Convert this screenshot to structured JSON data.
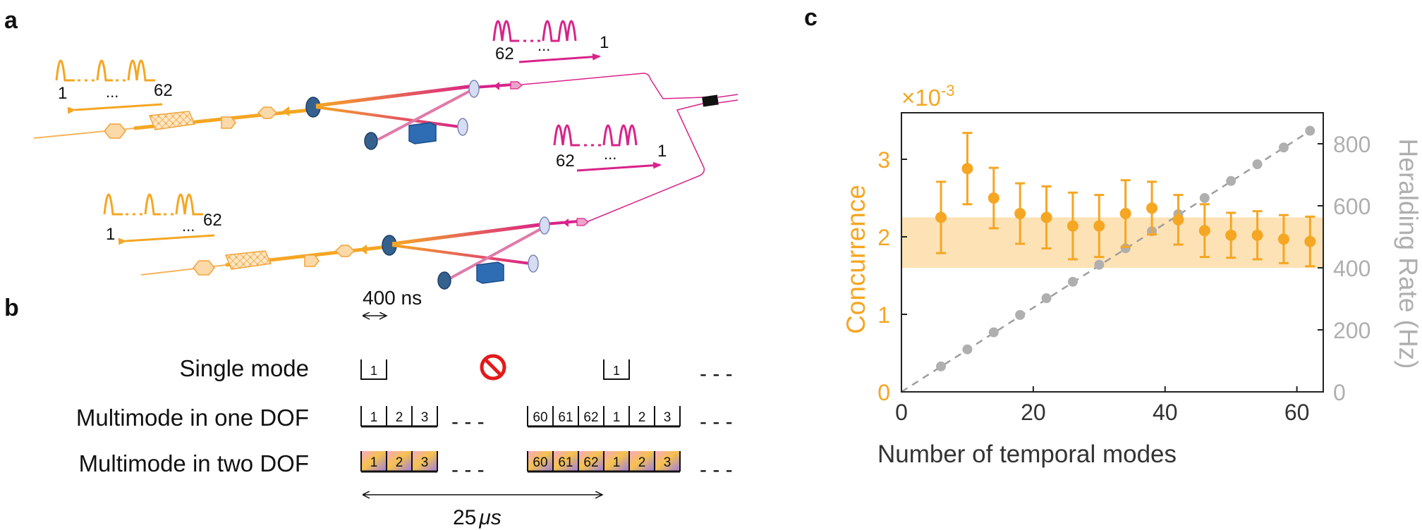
{
  "panels": {
    "a": "a",
    "b": "b",
    "c": "c"
  },
  "panel_a": {
    "signal_top": {
      "first": "62",
      "dots": "...",
      "last": "1"
    },
    "idler_top": {
      "first": "1",
      "dots": "...",
      "last": "62"
    },
    "signal_bottom": {
      "first": "62",
      "dots": "...",
      "last": "1"
    },
    "idler_bottom": {
      "first": "1",
      "dots": "...",
      "last": "62"
    },
    "colors": {
      "idler": "#F5A623",
      "signal": "#D8238A",
      "optics": "#2E6DB4"
    }
  },
  "panel_b": {
    "pulse_width": "400 ns",
    "period": "25 μs",
    "period_number": "25",
    "period_unit": "μs",
    "rows": [
      {
        "label": "Single mode"
      },
      {
        "label": "Multimode in one DOF"
      },
      {
        "label": "Multimode in two DOF"
      }
    ],
    "single_mode_cell": "1",
    "first_group": [
      "1",
      "2",
      "3"
    ],
    "second_group": [
      "60",
      "61",
      "62",
      "1",
      "2",
      "3"
    ],
    "ellipsis": "- - -",
    "forbidden_icon": "prohibited-icon"
  },
  "chart_data": {
    "type": "scatter",
    "title": "",
    "xlabel": "Number of temporal modes",
    "ylabel_left": "Concurrence",
    "ylabel_right": "Heralding Rate (Hz)",
    "left_multiplier": "×10",
    "left_exponent": "-3",
    "xlim": [
      0,
      64
    ],
    "ylim_left": [
      0,
      3.6
    ],
    "ylim_right": [
      0,
      900
    ],
    "x_ticks": [
      "0",
      "20",
      "40",
      "60"
    ],
    "y_ticks_left": [
      "0",
      "1",
      "2",
      "3"
    ],
    "y_ticks_right": [
      "0",
      "200",
      "400",
      "600",
      "800"
    ],
    "band": {
      "low": 1.6,
      "high": 2.25,
      "color": "#FDDDA8"
    },
    "series": [
      {
        "axis": "left",
        "color": "#F5A623",
        "x": [
          6,
          10,
          14,
          18,
          22,
          26,
          30,
          34,
          38,
          42,
          46,
          50,
          54,
          58,
          62
        ],
        "y": [
          2.25,
          2.88,
          2.5,
          2.3,
          2.25,
          2.14,
          2.14,
          2.3,
          2.37,
          2.22,
          2.08,
          2.02,
          2.02,
          1.97,
          1.94
        ],
        "err": [
          0.46,
          0.46,
          0.39,
          0.39,
          0.4,
          0.43,
          0.4,
          0.43,
          0.34,
          0.32,
          0.34,
          0.29,
          0.31,
          0.31,
          0.32
        ]
      },
      {
        "axis": "right",
        "color": "#AFAFAF",
        "x": [
          6,
          10,
          14,
          18,
          22,
          26,
          30,
          34,
          38,
          42,
          46,
          50,
          54,
          58,
          62
        ],
        "y": [
          82,
          137,
          192,
          248,
          302,
          355,
          410,
          463,
          518,
          573,
          625,
          680,
          734,
          788,
          842
        ]
      }
    ],
    "trend_line": {
      "from": [
        0,
        0
      ],
      "to": [
        63,
        855
      ]
    },
    "colors": {
      "concurrence": "#F5A623",
      "rate": "#AFAFAF",
      "trend": "#9E9E9E"
    }
  }
}
